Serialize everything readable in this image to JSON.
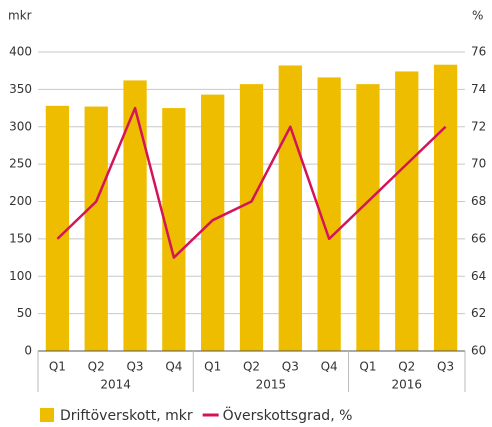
{
  "chart_data": {
    "type": "bar_line",
    "y_unit": "mkr",
    "y2_unit": "%",
    "categories": [
      "Q1",
      "Q2",
      "Q3",
      "Q4",
      "Q1",
      "Q2",
      "Q3",
      "Q4",
      "Q1",
      "Q2",
      "Q3"
    ],
    "groups": [
      {
        "name": "2014",
        "count": 4
      },
      {
        "name": "2015",
        "count": 4
      },
      {
        "name": "2016",
        "count": 3
      }
    ],
    "series": [
      {
        "name": "Driftöverskott, mkr",
        "type": "bar",
        "color": "#eebd00",
        "values": [
          328,
          327,
          362,
          325,
          343,
          357,
          382,
          366,
          357,
          374,
          383
        ]
      },
      {
        "name": "Överskottsgrad, %",
        "type": "line",
        "axis": "y2",
        "color": "#d3145a",
        "values": [
          66,
          68,
          73,
          65,
          67,
          68,
          72,
          66,
          68,
          70,
          72
        ]
      }
    ],
    "ylim": [
      0,
      400
    ],
    "yticks": [
      0,
      50,
      100,
      150,
      200,
      250,
      300,
      350,
      400
    ],
    "y2lim": [
      60,
      76
    ],
    "y2ticks": [
      60,
      62,
      64,
      66,
      68,
      70,
      72,
      74,
      76
    ],
    "grid": true
  }
}
